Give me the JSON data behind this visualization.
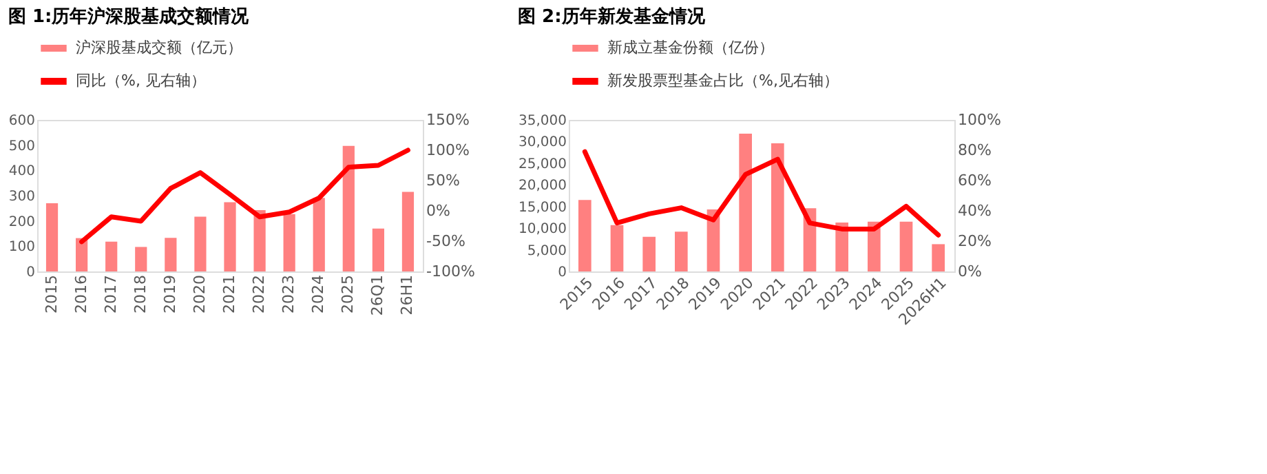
{
  "chart_data": [
    {
      "type": "bar",
      "title": "图 1:历年沪深股基成交额情况",
      "categories": [
        "2015",
        "2016",
        "2017",
        "2018",
        "2019",
        "2020",
        "2021",
        "2022",
        "2023",
        "2024",
        "2025",
        "26Q1",
        "26H1"
      ],
      "series": [
        {
          "name": "沪深股基成交额（亿元）",
          "color": "#ff8080",
          "values": [
            270,
            132,
            118,
            97,
            133,
            217,
            274,
            243,
            227,
            291,
            497,
            170,
            315
          ]
        },
        {
          "name": "同比（%, 见右轴）",
          "type": "line",
          "axis": "y2",
          "color": "#ff0000",
          "values": [
            null,
            -51,
            -10,
            -17,
            37,
            63,
            27,
            -10,
            -2,
            21,
            72,
            75,
            100
          ]
        }
      ],
      "ylim": [
        0,
        600
      ],
      "yticks": [
        0,
        100,
        200,
        300,
        400,
        500,
        600
      ],
      "y2lim": [
        -100,
        150
      ],
      "y2ticks": [
        {
          "value": -100,
          "label": "-100%"
        },
        {
          "value": -50,
          "label": "-50%"
        },
        {
          "value": 0,
          "label": "0%"
        },
        {
          "value": 50,
          "label": "50%"
        },
        {
          "value": 100,
          "label": "100%"
        },
        {
          "value": 150,
          "label": "150%"
        }
      ],
      "legend": "top",
      "grid": false
    },
    {
      "type": "bar",
      "title": "图 2:历年新发基金情况",
      "categories": [
        "2015",
        "2016",
        "2017",
        "2018",
        "2019",
        "2020",
        "2021",
        "2022",
        "2023",
        "2024",
        "2025",
        "2026H1"
      ],
      "series": [
        {
          "name": "新成立基金份额（亿份）",
          "color": "#ff8080",
          "values": [
            16500,
            10700,
            8000,
            9200,
            14300,
            31800,
            29600,
            14600,
            11300,
            11500,
            11500,
            6300
          ]
        },
        {
          "name": "新发股票型基金占比（%,见右轴）",
          "type": "line",
          "axis": "y2",
          "color": "#ff0000",
          "values": [
            79,
            32,
            38,
            42,
            34,
            64,
            74,
            32,
            28,
            28,
            43,
            24
          ]
        }
      ],
      "ylim": [
        0,
        35000
      ],
      "yticks": [
        {
          "value": 0,
          "label": "0"
        },
        {
          "value": 5000,
          "label": "5,000"
        },
        {
          "value": 10000,
          "label": "10,000"
        },
        {
          "value": 15000,
          "label": "15,000"
        },
        {
          "value": 20000,
          "label": "20,000"
        },
        {
          "value": 25000,
          "label": "25,000"
        },
        {
          "value": 30000,
          "label": "30,000"
        },
        {
          "value": 35000,
          "label": "35,000"
        }
      ],
      "y2lim": [
        0,
        100
      ],
      "y2ticks": [
        {
          "value": 0,
          "label": "0%"
        },
        {
          "value": 20,
          "label": "20%"
        },
        {
          "value": 40,
          "label": "40%"
        },
        {
          "value": 60,
          "label": "60%"
        },
        {
          "value": 80,
          "label": "80%"
        },
        {
          "value": 100,
          "label": "100%"
        }
      ],
      "legend": "top",
      "grid": false
    }
  ]
}
